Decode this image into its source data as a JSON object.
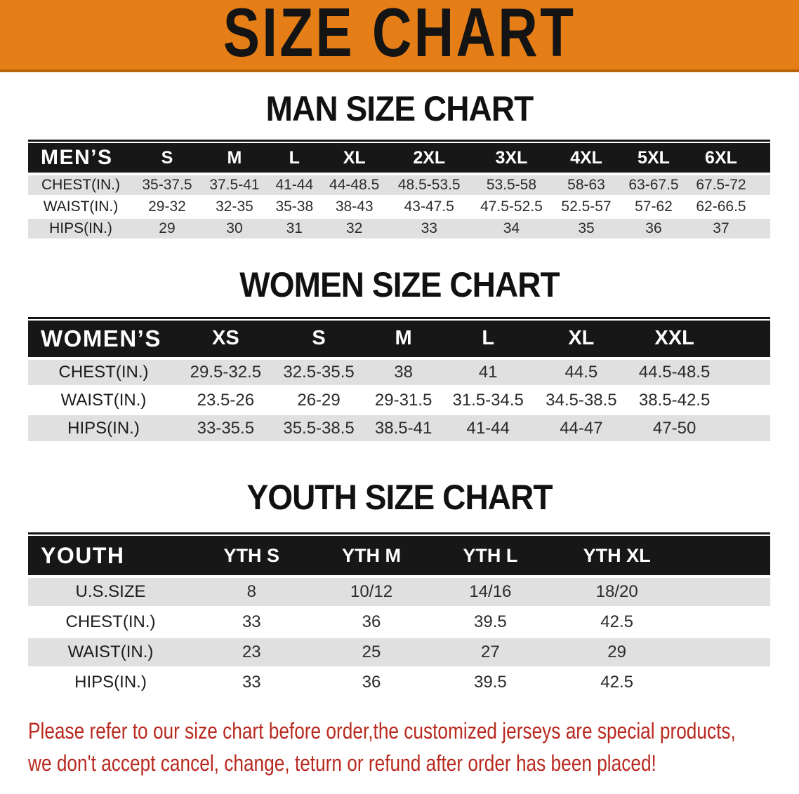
{
  "banner": {
    "title": "SIZE CHART",
    "bg_color": "#e67e17",
    "border_color": "#b96408",
    "text_color": "#141414"
  },
  "colors": {
    "header_bar": "#171717",
    "row_shade": "#e0e0e0",
    "note_red": "#b9291f"
  },
  "sections": [
    {
      "heading": "MAN SIZE CHART",
      "table": {
        "name": "mens",
        "header_label": "MEN’S",
        "columns": [
          "S",
          "M",
          "L",
          "XL",
          "2XL",
          "3XL",
          "4XL",
          "5XL",
          "6XL"
        ],
        "rows": [
          {
            "label": "CHEST(IN.)",
            "values": [
              "35-37.5",
              "37.5-41",
              "41-44",
              "44-48.5",
              "48.5-53.5",
              "53.5-58",
              "58-63",
              "63-67.5",
              "67.5-72"
            ]
          },
          {
            "label": "WAIST(IN.)",
            "values": [
              "29-32",
              "32-35",
              "35-38",
              "38-43",
              "43-47.5",
              "47.5-52.5",
              "52.5-57",
              "57-62",
              "62-66.5"
            ]
          },
          {
            "label": "HIPS(IN.)",
            "values": [
              "29",
              "30",
              "31",
              "32",
              "33",
              "34",
              "35",
              "36",
              "37"
            ]
          }
        ]
      }
    },
    {
      "heading": "WOMEN SIZE CHART",
      "table": {
        "name": "womens",
        "header_label": "WOMEN’S",
        "columns": [
          "XS",
          "S",
          "M",
          "L",
          "XL",
          "XXL"
        ],
        "rows": [
          {
            "label": "CHEST(IN.)",
            "values": [
              "29.5-32.5",
              "32.5-35.5",
              "38",
              "41",
              "44.5",
              "44.5-48.5"
            ]
          },
          {
            "label": "WAIST(IN.)",
            "values": [
              "23.5-26",
              "26-29",
              "29-31.5",
              "31.5-34.5",
              "34.5-38.5",
              "38.5-42.5"
            ]
          },
          {
            "label": "HIPS(IN.)",
            "values": [
              "33-35.5",
              "35.5-38.5",
              "38.5-41",
              "41-44",
              "44-47",
              "47-50"
            ]
          }
        ]
      }
    },
    {
      "heading": "YOUTH SIZE CHART",
      "table": {
        "name": "youth",
        "header_label": "YOUTH",
        "columns": [
          "YTH S",
          "YTH M",
          "YTH L",
          "YTH XL"
        ],
        "rows": [
          {
            "label": "U.S.SIZE",
            "values": [
              "8",
              "10/12",
              "14/16",
              "18/20"
            ]
          },
          {
            "label": "CHEST(IN.)",
            "values": [
              "33",
              "36",
              "39.5",
              "42.5"
            ]
          },
          {
            "label": "WAIST(IN.)",
            "values": [
              "23",
              "25",
              "27",
              "29"
            ]
          },
          {
            "label": "HIPS(IN.)",
            "values": [
              "33",
              "36",
              "39.5",
              "42.5"
            ]
          }
        ]
      }
    }
  ],
  "footer": {
    "lines": [
      "Please refer to our size chart before order,the customized jerseys are special products,",
      "we don't accept cancel, change, teturn or refund after order has been placed!"
    ]
  }
}
